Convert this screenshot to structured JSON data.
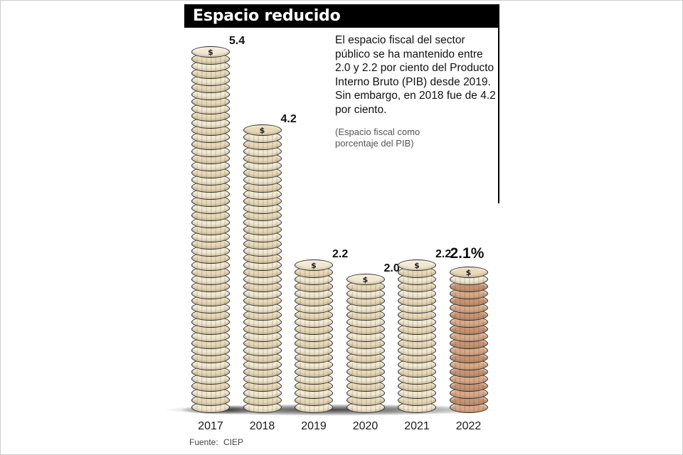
{
  "title": "Espacio reducido",
  "description": "El espacio fiscal del sector público se ha mantenido entre 2.0 y 2.2 por ciento del Producto Interno Bruto (PIB) desde 2019. Sin embargo, en 2018 fue de 4.2 por ciento.",
  "note": "(Espacio fiscal como porcentaje del PIB)",
  "source": {
    "label": "Fuente:",
    "value": "CIEP"
  },
  "chart_data": {
    "type": "bar",
    "variant": "coin-stack-pictogram",
    "title": "Espacio reducido",
    "categories": [
      "2017",
      "2018",
      "2019",
      "2020",
      "2021",
      "2022"
    ],
    "values": [
      5.4,
      4.2,
      2.2,
      2.0,
      2.2,
      2.1
    ],
    "value_labels": [
      "5.4",
      "4.2",
      "2.2",
      "2.0",
      "2.2",
      "2.1%"
    ],
    "highlight_index": 5,
    "unit": "Espacio fiscal como porcentaje del PIB",
    "ylim": [
      0,
      5.4
    ],
    "grid": false,
    "legend": "none",
    "coin_symbol": "$",
    "colors": {
      "coin_fill": "#f2e9d3",
      "coin_fill_alt": "#e7dabb",
      "highlight_fill": "#d8a98a",
      "highlight_fill_alt": "#c69476",
      "coin_edge": "#2e2e2e",
      "label": "#111111",
      "title_bg": "#000000",
      "title_fg": "#ffffff",
      "shadow": "#3c3c3c"
    }
  }
}
